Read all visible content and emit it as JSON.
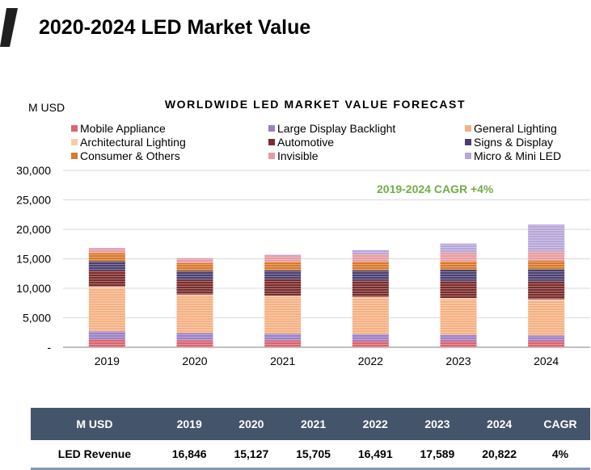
{
  "header": {
    "title": "2020-2024 LED Market Value"
  },
  "chart_data": {
    "type": "bar",
    "stacked": true,
    "title": "WORLDWIDE LED MARKET VALUE FORECAST",
    "ylabel": "M USD",
    "xlabel": "",
    "ylim": [
      0,
      30000
    ],
    "yticks": [
      "-",
      "5,000",
      "10,000",
      "15,000",
      "20,000",
      "25,000",
      "30,000"
    ],
    "grid": true,
    "legend_position": "top",
    "annotation": "2019-2024 CAGR +4%",
    "annotation_color": "#70ad47",
    "categories": [
      "2019",
      "2020",
      "2021",
      "2022",
      "2023",
      "2024"
    ],
    "series": [
      {
        "name": "Mobile Appliance",
        "color": "#d9646e",
        "values": [
          1300,
          1200,
          1150,
          1100,
          1100,
          1100
        ]
      },
      {
        "name": "Large Display Backlight",
        "color": "#9b7fc8",
        "values": [
          1400,
          1200,
          1150,
          1100,
          1000,
          900
        ]
      },
      {
        "name": "General Lighting",
        "color": "#f4b183",
        "values": [
          7300,
          6300,
          6200,
          6100,
          6000,
          5900
        ]
      },
      {
        "name": "Architectural Lighting",
        "color": "#f8cbad",
        "values": [
          300,
          250,
          250,
          250,
          250,
          250
        ]
      },
      {
        "name": "Automotive",
        "color": "#7b2c2c",
        "values": [
          2700,
          2500,
          2800,
          2800,
          2900,
          3100
        ]
      },
      {
        "name": "Signs & Display",
        "color": "#4b3f72",
        "values": [
          1600,
          1500,
          1500,
          1700,
          1900,
          2000
        ]
      },
      {
        "name": "Consumer & Others",
        "color": "#d87a2a",
        "values": [
          1400,
          1300,
          1350,
          1400,
          1400,
          1400
        ]
      },
      {
        "name": "Invisible",
        "color": "#e89ba0",
        "values": [
          750,
          800,
          1150,
          1300,
          1500,
          1600
        ]
      },
      {
        "name": "Micro & Mini LED",
        "color": "#b7a6d8",
        "values": [
          96,
          77,
          155,
          741,
          1539,
          4572
        ]
      }
    ]
  },
  "table": {
    "headers": [
      "M USD",
      "2019",
      "2020",
      "2021",
      "2022",
      "2023",
      "2024",
      "CAGR"
    ],
    "row": [
      "LED Revenue",
      "16,846",
      "15,127",
      "15,705",
      "16,491",
      "17,589",
      "20,822",
      "4%"
    ],
    "header_color": "#44546a"
  }
}
